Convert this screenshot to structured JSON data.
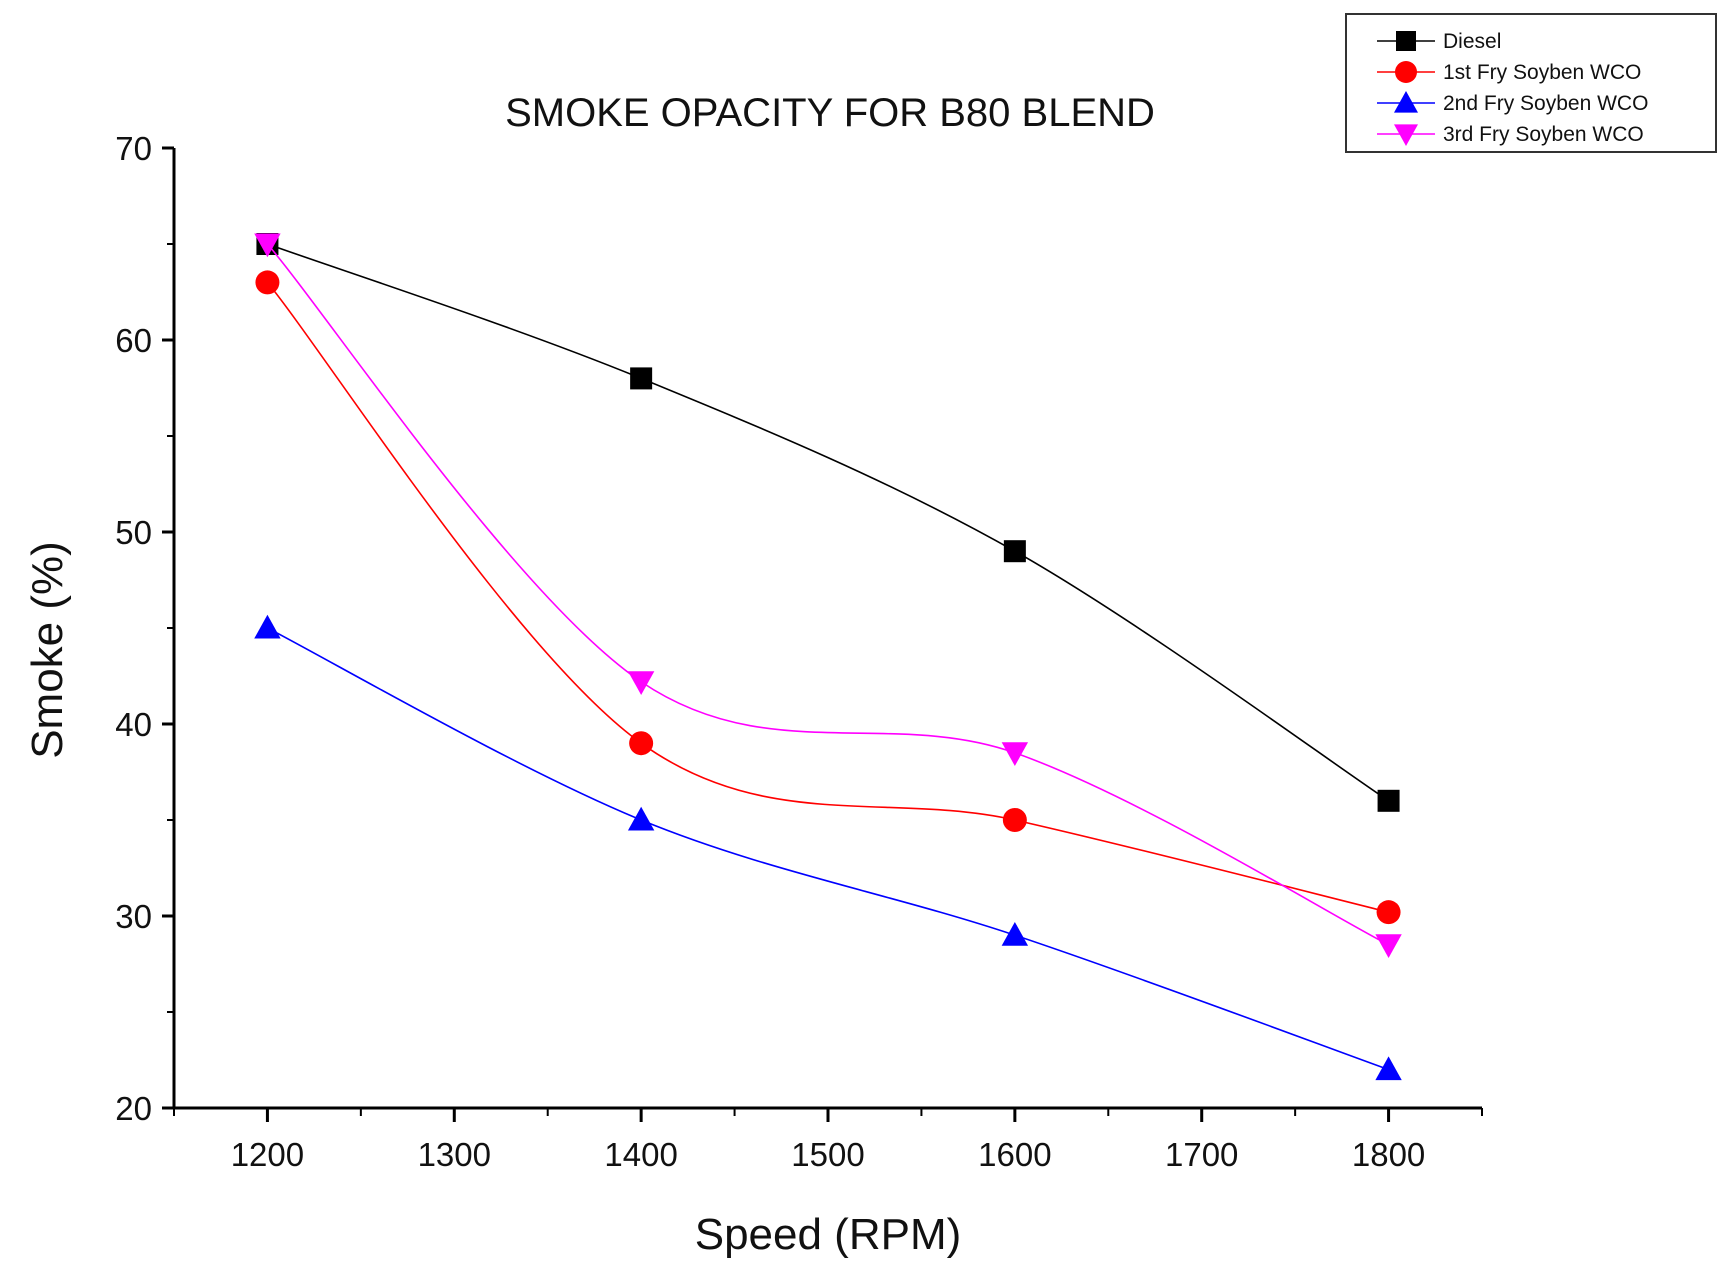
{
  "chart_data": {
    "type": "line",
    "title": "SMOKE OPACITY FOR B80 BLEND",
    "xlabel": "Speed (RPM)",
    "ylabel": "Smoke (%)",
    "x": [
      1200,
      1400,
      1600,
      1800
    ],
    "xlim": [
      1150,
      1850
    ],
    "ylim": [
      20,
      70
    ],
    "xticks": [
      1200,
      1300,
      1400,
      1500,
      1600,
      1700,
      1800
    ],
    "yticks": [
      20,
      30,
      40,
      50,
      60,
      70
    ],
    "grid": false,
    "legend_position": "top-right",
    "series": [
      {
        "name": "Diesel",
        "values": [
          65,
          58,
          49,
          36
        ],
        "color": "#000000",
        "marker": "square"
      },
      {
        "name": "1st Fry Soyben WCO",
        "values": [
          63,
          39,
          35,
          30.2
        ],
        "color": "#ff0000",
        "marker": "circle"
      },
      {
        "name": "2nd Fry Soyben WCO",
        "values": [
          45,
          35,
          29,
          22
        ],
        "color": "#0000ff",
        "marker": "triangle-up"
      },
      {
        "name": "3rd Fry Soyben WCO",
        "values": [
          65,
          42.2,
          38.5,
          28.5
        ],
        "color": "#ff00ff",
        "marker": "triangle-down"
      }
    ]
  }
}
